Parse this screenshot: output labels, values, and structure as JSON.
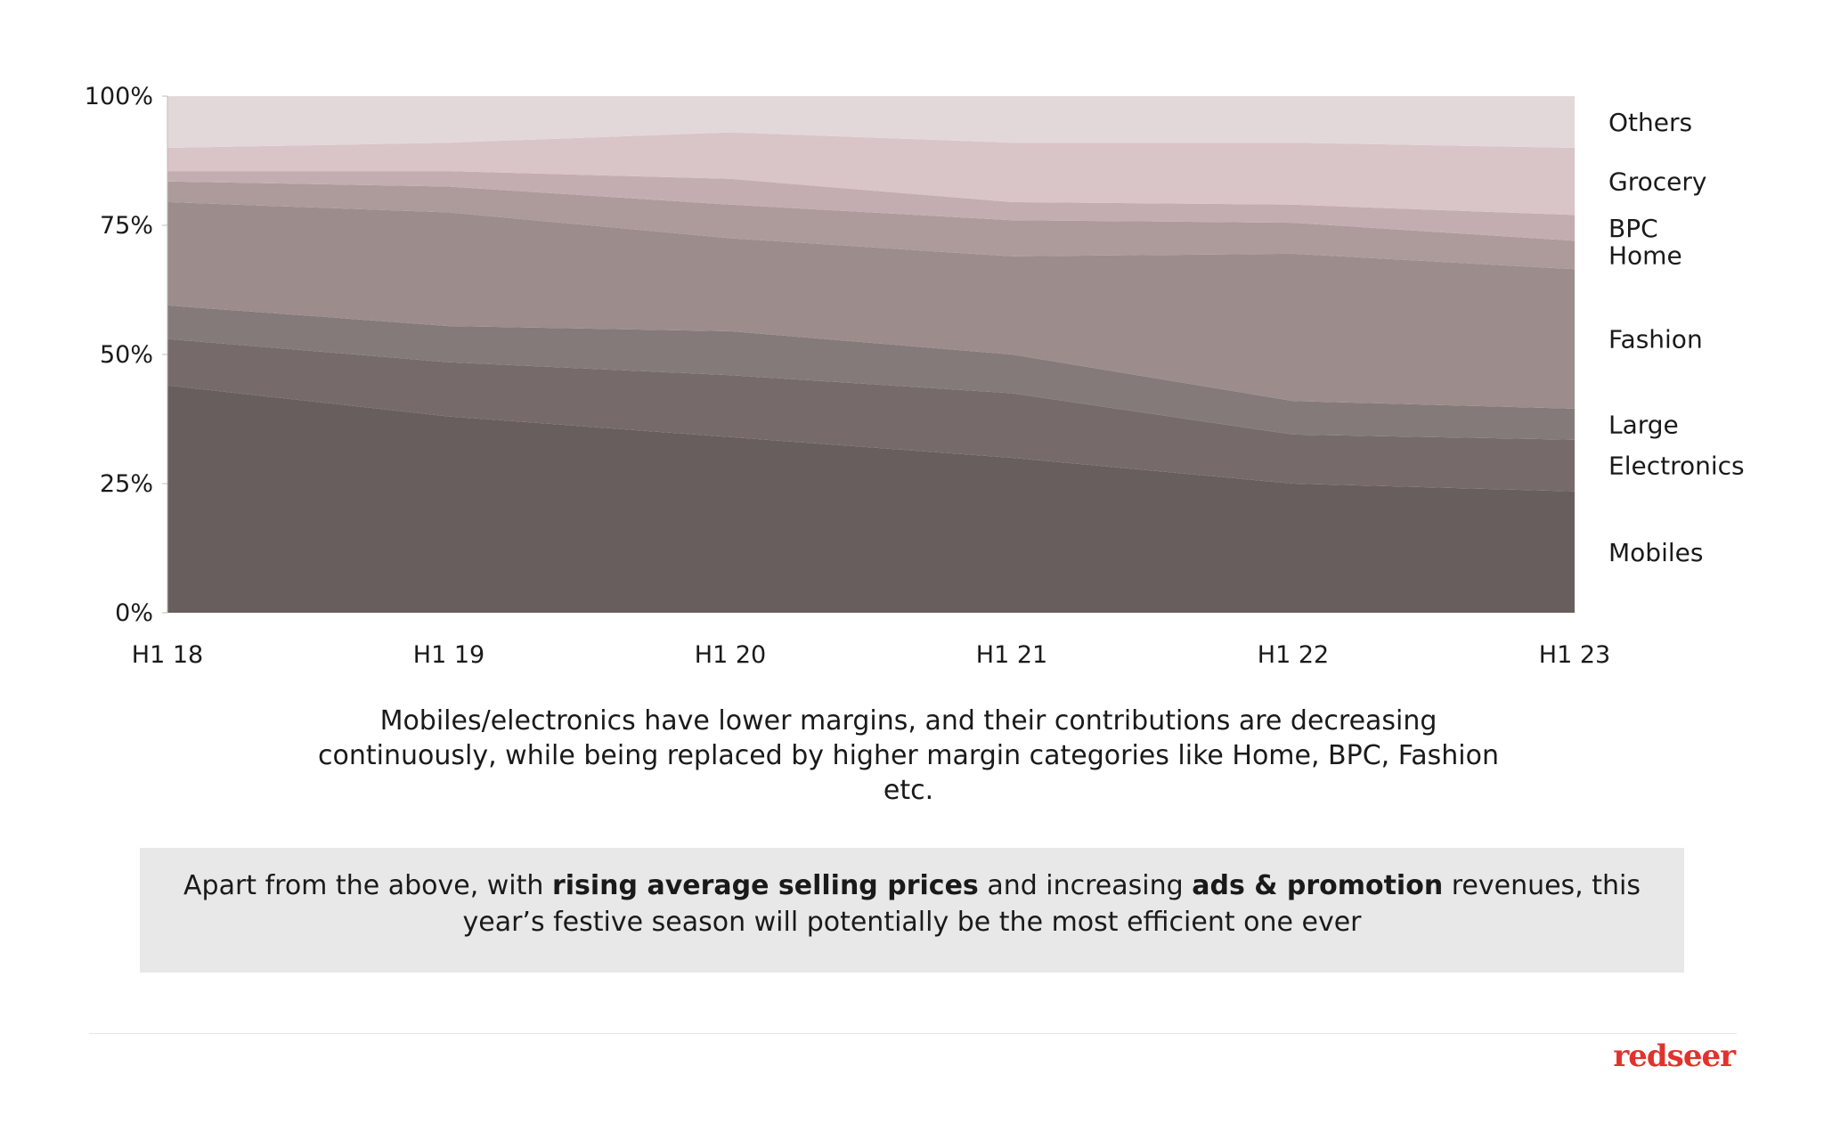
{
  "chart_data": {
    "type": "area",
    "stacked": true,
    "normalized": true,
    "categories": [
      "H1 18",
      "H1 19",
      "H1 20",
      "H1 21",
      "H1 22",
      "H1 23"
    ],
    "series": [
      {
        "name": "Mobiles",
        "values": [
          44,
          38,
          34,
          30,
          25,
          23.5
        ],
        "color": "#695e5e"
      },
      {
        "name": "Electronics",
        "values": [
          9,
          10.5,
          12,
          12.5,
          9.5,
          10
        ],
        "color": "#766b6a"
      },
      {
        "name": "Large",
        "values": [
          6.5,
          7,
          8.5,
          7.5,
          6.5,
          6
        ],
        "color": "#857a7a"
      },
      {
        "name": "Fashion",
        "values": [
          20,
          22,
          18,
          19,
          28.5,
          27
        ],
        "color": "#9c8c8c"
      },
      {
        "name": "Home",
        "values": [
          4,
          5,
          6.5,
          7,
          6,
          5.5
        ],
        "color": "#ad9a9b"
      },
      {
        "name": "BPC",
        "values": [
          2,
          3,
          5,
          3.5,
          3.5,
          5
        ],
        "color": "#c3adb0"
      },
      {
        "name": "Grocery",
        "values": [
          4.5,
          5.5,
          9,
          11.5,
          12,
          13
        ],
        "color": "#d9c4c7"
      },
      {
        "name": "Others",
        "values": [
          10,
          9,
          7,
          9,
          9,
          10
        ],
        "color": "#e3d8d9"
      }
    ],
    "y_ticks": [
      "0%",
      "25%",
      "50%",
      "75%",
      "100%"
    ],
    "ylim": [
      0,
      100
    ],
    "legend_placement": "right",
    "grid": false
  },
  "caption": "Mobiles/electronics have lower margins, and their contributions are decreasing continuously, while being replaced by higher margin categories like Home, BPC, Fashion etc.",
  "callout": {
    "part1": "Apart from the above, with ",
    "bold1": "rising average selling prices",
    "part2": " and increasing ",
    "bold2": "ads & promotion",
    "part3": " revenues, this year’s festive season will potentially be the most efficient one ever"
  },
  "brand": "redseer"
}
